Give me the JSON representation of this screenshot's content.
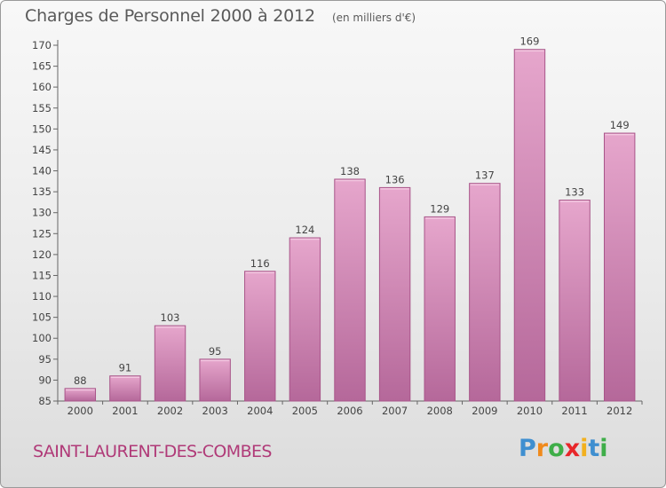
{
  "title": "Charges de Personnel 2000 à 2012",
  "unit_note": "(en milliers d'€)",
  "commune": "SAINT-LAURENT-DES-COMBES",
  "logo": {
    "letters": [
      "P",
      "r",
      "o",
      "x",
      "i",
      "t",
      "i"
    ],
    "colors": [
      "#3f8fd0",
      "#f08a1c",
      "#3fae49",
      "#e8262a",
      "#f2b01e",
      "#3f8fd0",
      "#3fae49"
    ]
  },
  "colors": {
    "bar": "#d98fbd",
    "bar_dark": "#b85f95",
    "text": "#5a5a5a",
    "commune": "#b03a78"
  },
  "chart_data": {
    "type": "bar",
    "title": "Charges de Personnel 2000 à 2012",
    "unit": "(en milliers d'€)",
    "categories": [
      "2000",
      "2001",
      "2002",
      "2003",
      "2004",
      "2005",
      "2006",
      "2007",
      "2008",
      "2009",
      "2010",
      "2011",
      "2012"
    ],
    "values": [
      88,
      91,
      103,
      95,
      116,
      124,
      138,
      136,
      129,
      137,
      169,
      133,
      149
    ],
    "ylim": [
      85,
      170
    ],
    "yticks": [
      85,
      90,
      95,
      100,
      105,
      110,
      115,
      120,
      125,
      130,
      135,
      140,
      145,
      150,
      155,
      160,
      165,
      170
    ],
    "grid": false,
    "legend": "none"
  }
}
